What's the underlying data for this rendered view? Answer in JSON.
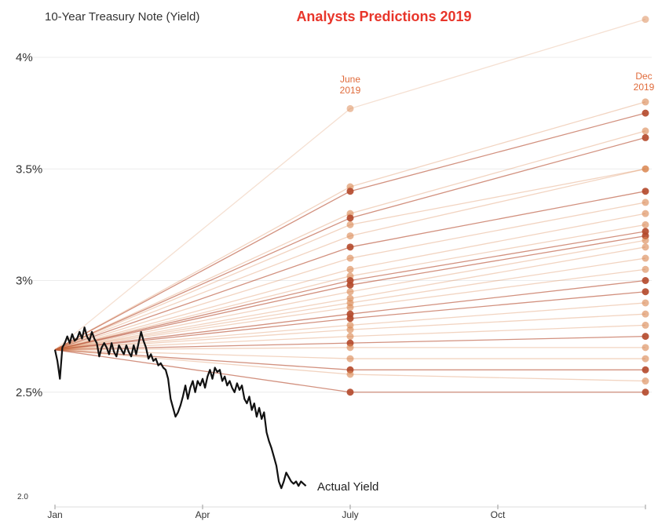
{
  "chart_data": {
    "type": "line",
    "title": "Analysts Predictions 2019",
    "subtitle": "10-Year Treasury Note (Yield)",
    "y_ticks": [
      {
        "value": 4.0,
        "label": "4%"
      },
      {
        "value": 3.5,
        "label": "3.5%"
      },
      {
        "value": 3.0,
        "label": "3%"
      },
      {
        "value": 2.5,
        "label": "2.5%"
      },
      {
        "value": 2.0,
        "label": "2.0"
      }
    ],
    "x_ticks": [
      {
        "month": 0,
        "label": "Jan"
      },
      {
        "month": 3,
        "label": "Apr"
      },
      {
        "month": 6,
        "label": "July"
      },
      {
        "month": 9,
        "label": "Oct"
      },
      {
        "month": 12,
        "label": ""
      }
    ],
    "ylim": [
      2.0,
      4.2
    ],
    "start_value": 2.69,
    "column_labels": [
      {
        "month": 6,
        "lines": [
          "June",
          "2019"
        ]
      },
      {
        "month": 12,
        "lines": [
          "Dec",
          "2019"
        ]
      }
    ],
    "colors": {
      "actual": "#111111",
      "prediction": "#d9834c",
      "prediction_dark": "#b4482a",
      "title": "#e8352a"
    },
    "actual_label": "Actual Yield",
    "actual_yield": {
      "x": [
        0.0,
        0.05,
        0.1,
        0.15,
        0.2,
        0.25,
        0.3,
        0.35,
        0.4,
        0.45,
        0.5,
        0.55,
        0.6,
        0.65,
        0.7,
        0.75,
        0.8,
        0.85,
        0.9,
        0.95,
        1.0,
        1.05,
        1.1,
        1.15,
        1.2,
        1.25,
        1.3,
        1.35,
        1.4,
        1.45,
        1.5,
        1.55,
        1.6,
        1.65,
        1.7,
        1.75,
        1.8,
        1.85,
        1.9,
        1.95,
        2.0,
        2.05,
        2.1,
        2.15,
        2.2,
        2.25,
        2.3,
        2.35,
        2.4,
        2.45,
        2.5,
        2.55,
        2.6,
        2.65,
        2.7,
        2.75,
        2.8,
        2.85,
        2.9,
        2.95,
        3.0,
        3.05,
        3.1,
        3.15,
        3.2,
        3.25,
        3.3,
        3.35,
        3.4,
        3.45,
        3.5,
        3.55,
        3.6,
        3.65,
        3.7,
        3.75,
        3.8,
        3.85,
        3.9,
        3.95,
        4.0,
        4.05,
        4.1,
        4.15,
        4.2,
        4.25,
        4.3,
        4.35,
        4.4,
        4.45,
        4.5,
        4.55,
        4.6,
        4.65,
        4.7,
        4.75,
        4.8,
        4.85,
        4.9,
        4.95,
        5.0,
        5.05,
        5.1
      ],
      "values": [
        2.69,
        2.64,
        2.56,
        2.7,
        2.72,
        2.75,
        2.72,
        2.76,
        2.73,
        2.74,
        2.77,
        2.74,
        2.79,
        2.75,
        2.73,
        2.77,
        2.74,
        2.72,
        2.66,
        2.7,
        2.72,
        2.7,
        2.67,
        2.72,
        2.68,
        2.66,
        2.71,
        2.69,
        2.67,
        2.71,
        2.68,
        2.66,
        2.71,
        2.67,
        2.72,
        2.77,
        2.73,
        2.7,
        2.65,
        2.67,
        2.64,
        2.65,
        2.62,
        2.63,
        2.61,
        2.6,
        2.56,
        2.47,
        2.43,
        2.39,
        2.41,
        2.44,
        2.48,
        2.53,
        2.47,
        2.52,
        2.55,
        2.5,
        2.55,
        2.53,
        2.56,
        2.52,
        2.57,
        2.6,
        2.56,
        2.61,
        2.59,
        2.6,
        2.55,
        2.57,
        2.53,
        2.55,
        2.52,
        2.5,
        2.54,
        2.51,
        2.53,
        2.47,
        2.45,
        2.48,
        2.42,
        2.45,
        2.39,
        2.43,
        2.38,
        2.41,
        2.32,
        2.28,
        2.25,
        2.21,
        2.17,
        2.1,
        2.07,
        2.1,
        2.14,
        2.12,
        2.1,
        2.09,
        2.1,
        2.08,
        2.1,
        2.09,
        2.08
      ]
    },
    "predictions": [
      {
        "june": 3.77,
        "dec": 4.17
      },
      {
        "june": 3.42,
        "dec": 3.8
      },
      {
        "june": 3.4,
        "dec": 3.75
      },
      {
        "june": 3.3,
        "dec": 3.67
      },
      {
        "june": 3.28,
        "dec": 3.64
      },
      {
        "june": 3.25,
        "dec": 3.5
      },
      {
        "june": 3.2,
        "dec": 3.5
      },
      {
        "june": 3.15,
        "dec": 3.4
      },
      {
        "june": 3.1,
        "dec": 3.35
      },
      {
        "june": 3.05,
        "dec": 3.3
      },
      {
        "june": 3.02,
        "dec": 3.25
      },
      {
        "june": 3.0,
        "dec": 3.22
      },
      {
        "june": 2.98,
        "dec": 3.2
      },
      {
        "june": 2.95,
        "dec": 3.18
      },
      {
        "june": 2.92,
        "dec": 3.15
      },
      {
        "june": 2.9,
        "dec": 3.1
      },
      {
        "june": 2.88,
        "dec": 3.05
      },
      {
        "june": 2.85,
        "dec": 3.0
      },
      {
        "june": 2.83,
        "dec": 2.95
      },
      {
        "june": 2.8,
        "dec": 2.9
      },
      {
        "june": 2.78,
        "dec": 2.85
      },
      {
        "june": 2.75,
        "dec": 2.8
      },
      {
        "june": 2.72,
        "dec": 2.75
      },
      {
        "june": 2.7,
        "dec": 2.7
      },
      {
        "june": 2.65,
        "dec": 2.65
      },
      {
        "june": 2.6,
        "dec": 2.6
      },
      {
        "june": 2.58,
        "dec": 2.55
      },
      {
        "june": 2.5,
        "dec": 2.5
      }
    ]
  }
}
